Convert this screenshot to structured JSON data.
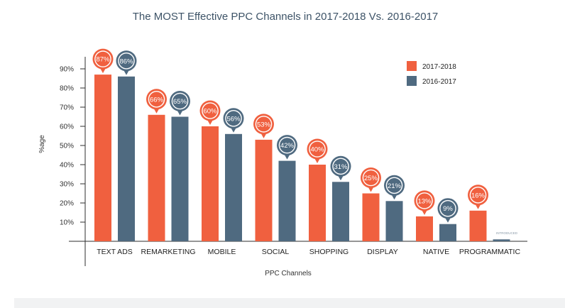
{
  "chart_data": {
    "type": "bar",
    "title": "The MOST Effective PPC Channels in 2017-2018 Vs. 2016-2017",
    "xlabel": "PPC Channels",
    "ylabel": "%age",
    "categories": [
      "TEXT ADS",
      "REMARKETING",
      "MOBILE",
      "SOCIAL",
      "SHOPPING",
      "DISPLAY",
      "NATIVE",
      "PROGRAMMATIC"
    ],
    "series": [
      {
        "name": "2017-2018",
        "color": "#f0603f",
        "values": [
          87,
          66,
          60,
          53,
          40,
          25,
          13,
          16
        ]
      },
      {
        "name": "2016-2017",
        "color": "#4f6a80",
        "values": [
          86,
          65,
          56,
          42,
          31,
          21,
          9,
          1
        ]
      }
    ],
    "data_labels": [
      [
        "87%",
        "66%",
        "60%",
        "53%",
        "40%",
        "25%",
        "13%",
        "16%"
      ],
      [
        "86%",
        "65%",
        "56%",
        "42%",
        "31%",
        "21%",
        "9%",
        ""
      ]
    ],
    "ylim": [
      0,
      100
    ],
    "yticks": [
      10,
      20,
      30,
      40,
      50,
      60,
      70,
      80,
      90
    ],
    "ytick_labels": [
      "10%",
      "20%",
      "30%",
      "40%",
      "50%",
      "60%",
      "70%",
      "80%",
      "90%"
    ],
    "annotation": "INTRODUCED",
    "legend_position": "top-right",
    "grid": false
  }
}
